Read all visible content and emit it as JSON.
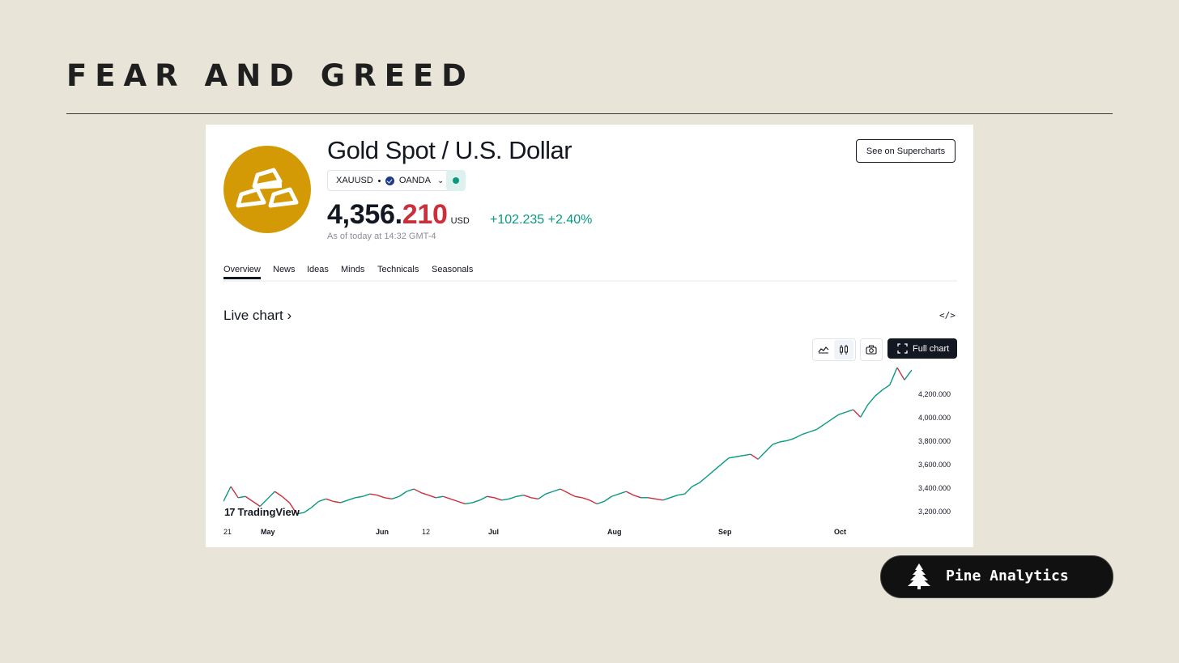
{
  "slide": {
    "title": "FEAR AND GREED"
  },
  "symbol": {
    "name": "Gold Spot / U.S. Dollar",
    "ticker": "XAUUSD",
    "exchange": "OANDA",
    "price_main": "4,356.",
    "price_tail": "210",
    "currency": "USD",
    "change": "+102.235",
    "change_percent": "+2.40%",
    "as_of": "As of today at 14:32 GMT-4",
    "logo_icon": "gold-bars-icon",
    "up_color": "#089981",
    "down_color": "#cc2f3c",
    "logo_color": "#d49a06"
  },
  "header": {
    "supercharts_label": "See on Supercharts"
  },
  "tabs": [
    {
      "label": "Overview",
      "active": true
    },
    {
      "label": "News"
    },
    {
      "label": "Ideas"
    },
    {
      "label": "Minds"
    },
    {
      "label": "Technicals"
    },
    {
      "label": "Seasonals"
    }
  ],
  "live_chart": {
    "title": "Live chart",
    "embed_icon": "code-embed-icon",
    "toolbar": {
      "full_chart_label": "Full chart",
      "line_icon": "line-chart-icon",
      "candle_icon": "candles-icon",
      "camera_icon": "camera-icon"
    },
    "brand": "TradingView"
  },
  "chart_data": {
    "type": "line",
    "title": "",
    "xlabel": "",
    "ylabel": "",
    "x_tick_labels": [
      "21",
      "May",
      "Jun",
      "12",
      "Jul",
      "Aug",
      "Sep",
      "Oct"
    ],
    "y_tick_labels": [
      "4,200.000",
      "4,000.000",
      "3,800.000",
      "3,600.000",
      "3,400.000",
      "3,200.000"
    ],
    "ylim": [
      3100,
      4380
    ],
    "grid": false,
    "series": [
      {
        "values": [
          3300,
          3420,
          3330,
          3340,
          3300,
          3260,
          3320,
          3380,
          3340,
          3290,
          3200,
          3210,
          3250,
          3300,
          3320,
          3300,
          3290,
          3310,
          3330,
          3340,
          3360,
          3350,
          3330,
          3320,
          3340,
          3380,
          3400,
          3370,
          3350,
          3330,
          3340,
          3320,
          3300,
          3280,
          3290,
          3310,
          3340,
          3330,
          3310,
          3320,
          3340,
          3350,
          3330,
          3320,
          3360,
          3380,
          3400,
          3370,
          3340,
          3330,
          3310,
          3280,
          3300,
          3340,
          3360,
          3380,
          3350,
          3330,
          3330,
          3320,
          3310,
          3330,
          3350,
          3360,
          3420,
          3450,
          3500,
          3550,
          3600,
          3650,
          3660,
          3670,
          3680,
          3640,
          3700,
          3760,
          3780,
          3790,
          3810,
          3840,
          3860,
          3880,
          3920,
          3960,
          4000,
          4020,
          4040,
          3980,
          4080,
          4150,
          4200,
          4240,
          4380,
          4280,
          4360
        ]
      }
    ]
  },
  "footer": {
    "brand": "Pine Analytics",
    "brand_icon": "pine-tree-icon"
  }
}
